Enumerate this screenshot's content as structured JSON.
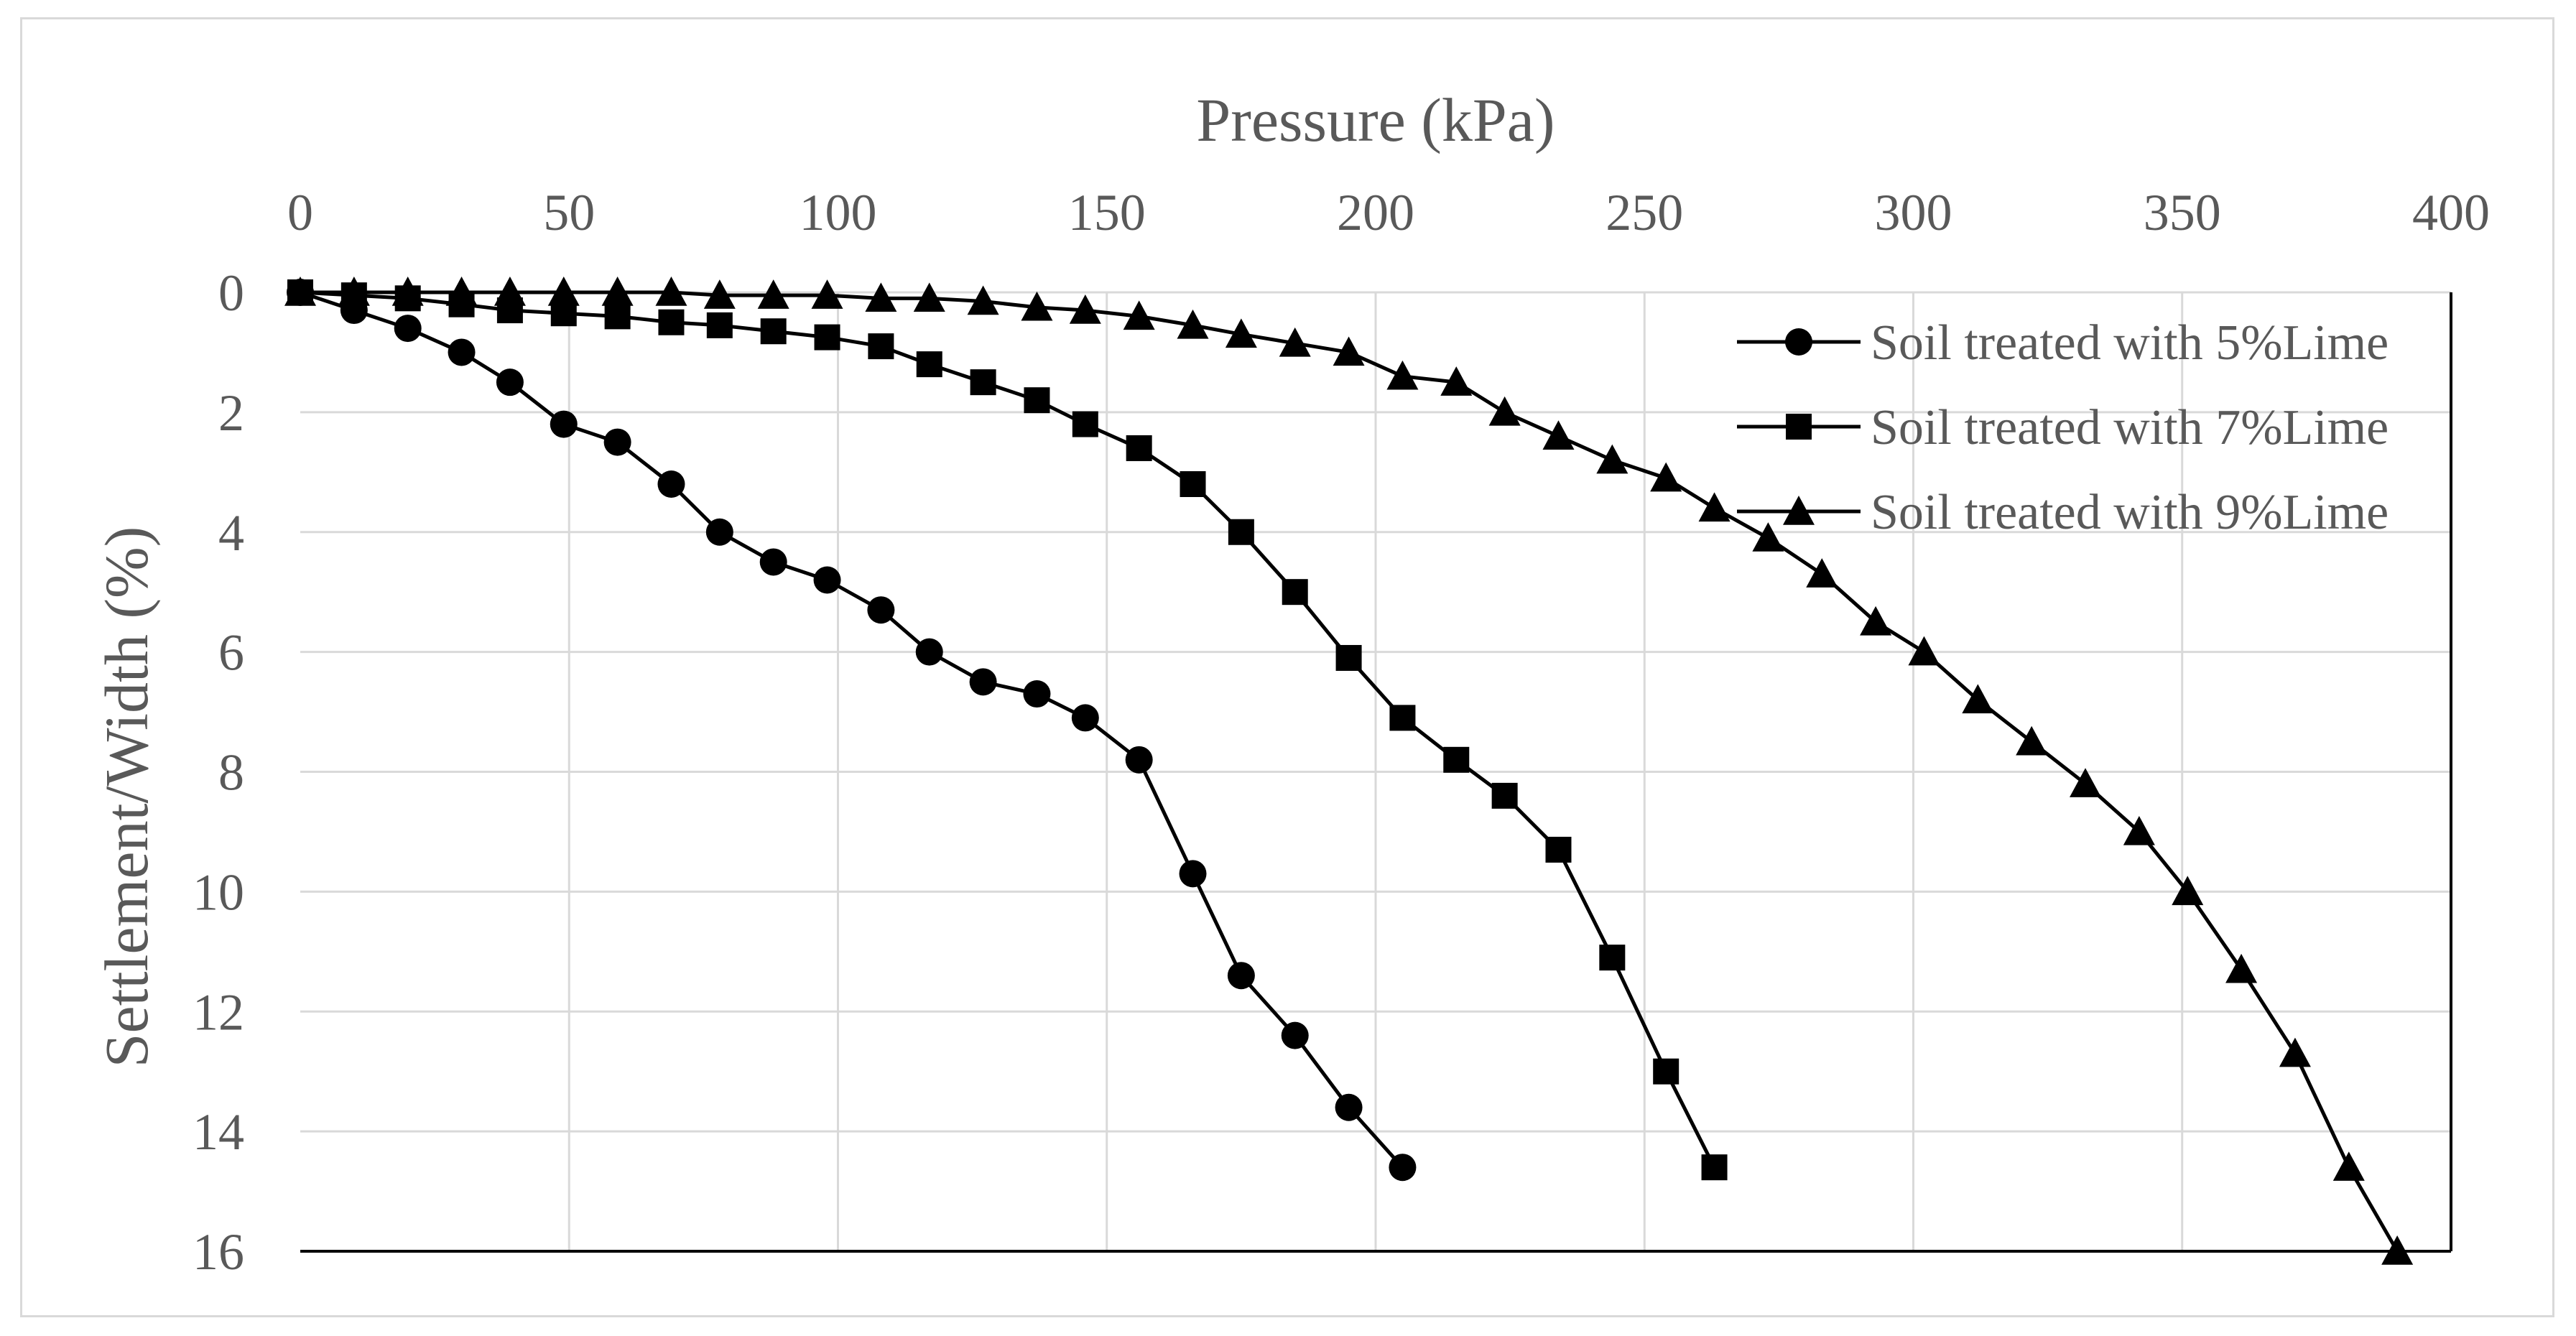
{
  "chart_data": {
    "type": "line",
    "xlabel": "Pressure (kPa)",
    "ylabel": "Settlement/Width (%)",
    "xlim": [
      0,
      400
    ],
    "ylim": [
      0,
      16
    ],
    "y_inverted": true,
    "x_axis_position": "top",
    "grid": true,
    "legend_position": "top-right",
    "x_ticks": [
      "0",
      "50",
      "100",
      "150",
      "200",
      "250",
      "300",
      "350",
      "400"
    ],
    "y_ticks": [
      "0",
      "2",
      "4",
      "6",
      "8",
      "10",
      "12",
      "14",
      "16"
    ],
    "series": [
      {
        "name": "Soil treated with 5%Lime",
        "marker": "circle",
        "x": [
          0,
          10,
          20,
          30,
          39,
          49,
          59,
          69,
          78,
          88,
          98,
          108,
          117,
          127,
          137,
          146,
          156,
          166,
          175,
          185,
          195,
          205
        ],
        "y": [
          0,
          0.3,
          0.6,
          1.0,
          1.5,
          2.2,
          2.5,
          3.2,
          4.0,
          4.5,
          4.8,
          5.3,
          6.0,
          6.5,
          6.7,
          7.1,
          7.8,
          9.7,
          11.4,
          12.4,
          13.6,
          14.6
        ]
      },
      {
        "name": "Soil treated with 7%Lime",
        "marker": "square",
        "x": [
          0,
          10,
          20,
          30,
          39,
          49,
          59,
          69,
          78,
          88,
          98,
          108,
          117,
          127,
          137,
          146,
          156,
          166,
          175,
          185,
          195,
          205,
          215,
          224,
          234,
          244,
          254,
          263
        ],
        "y": [
          0,
          0.05,
          0.1,
          0.2,
          0.3,
          0.35,
          0.4,
          0.5,
          0.55,
          0.65,
          0.75,
          0.9,
          1.2,
          1.5,
          1.8,
          2.2,
          2.6,
          3.2,
          4.0,
          5.0,
          6.1,
          7.1,
          7.8,
          8.4,
          9.3,
          11.1,
          13.0,
          14.6
        ]
      },
      {
        "name": "Soil treated with 9%Lime",
        "marker": "triangle",
        "x": [
          0,
          10,
          20,
          30,
          39,
          49,
          59,
          69,
          78,
          88,
          98,
          108,
          117,
          127,
          137,
          146,
          156,
          166,
          175,
          185,
          195,
          205,
          215,
          224,
          234,
          244,
          254,
          263,
          273,
          283,
          293,
          302,
          312,
          322,
          332,
          342,
          351,
          361,
          371,
          381,
          390
        ],
        "y": [
          0,
          0,
          0,
          0,
          0,
          0,
          0,
          0,
          0.05,
          0.05,
          0.05,
          0.1,
          0.1,
          0.15,
          0.25,
          0.3,
          0.4,
          0.55,
          0.7,
          0.85,
          1.0,
          1.4,
          1.5,
          2.0,
          2.4,
          2.8,
          3.1,
          3.6,
          4.1,
          4.7,
          5.5,
          6.0,
          6.8,
          7.5,
          8.2,
          9.0,
          10.0,
          11.3,
          12.7,
          14.6,
          16.0
        ]
      }
    ]
  }
}
